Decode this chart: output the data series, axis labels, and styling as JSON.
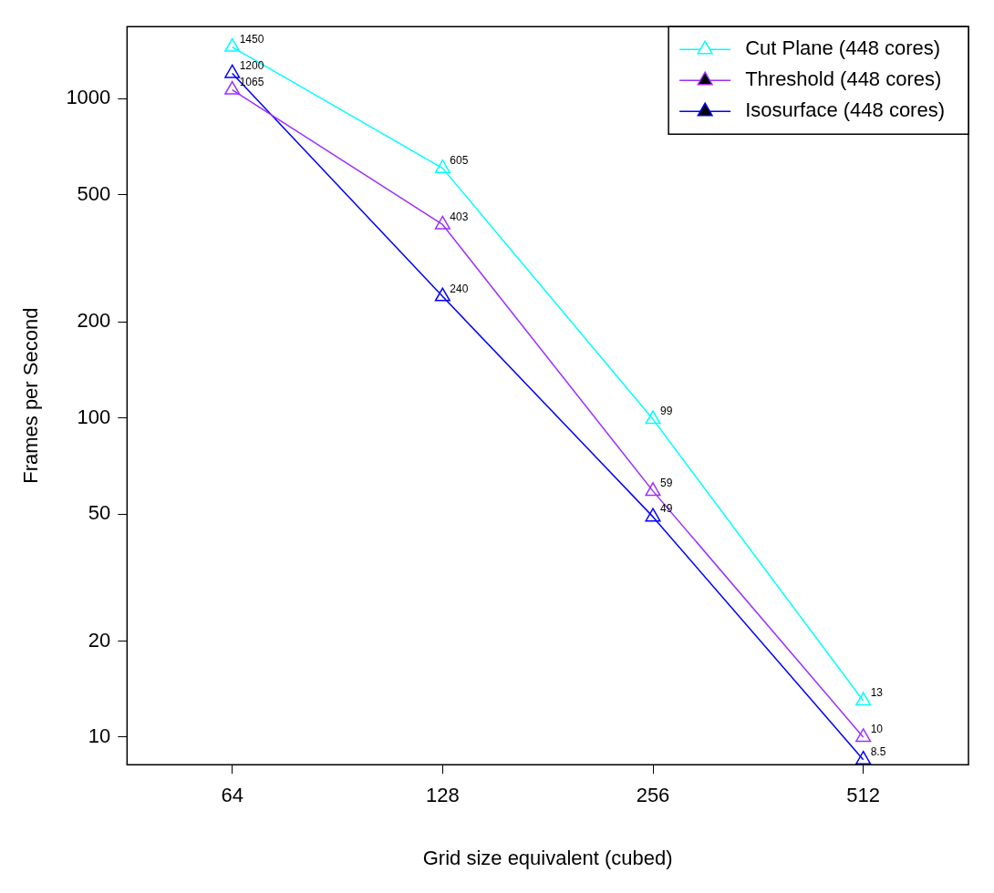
{
  "chart_data": {
    "type": "line",
    "xlabel": "Grid size equivalent (cubed)",
    "ylabel": "Frames per Second",
    "categories": [
      "64",
      "128",
      "256",
      "512"
    ],
    "series": [
      {
        "name": "Cut Plane (448 cores)",
        "color": "#00ffff",
        "values": [
          1450,
          605,
          99,
          13
        ],
        "value_labels": [
          "1450",
          "605",
          "99",
          "13"
        ]
      },
      {
        "name": "Threshold (448 cores)",
        "color": "#9b30ff",
        "values": [
          1065,
          403,
          59,
          10
        ],
        "value_labels": [
          "1065",
          "403",
          "59",
          "10"
        ]
      },
      {
        "name": "Isosurface (448 cores)",
        "color": "#0000ff",
        "values": [
          1200,
          240,
          49,
          8.5
        ],
        "value_labels": [
          "1200",
          "240",
          "49",
          "8.5"
        ]
      }
    ],
    "log": "y",
    "ylim": [
      8.2,
      1680
    ],
    "yticks": [
      10,
      20,
      50,
      100,
      200,
      500,
      1000
    ],
    "grid": false,
    "legend": "top right",
    "marker": "triangle",
    "line_style": "solid"
  }
}
